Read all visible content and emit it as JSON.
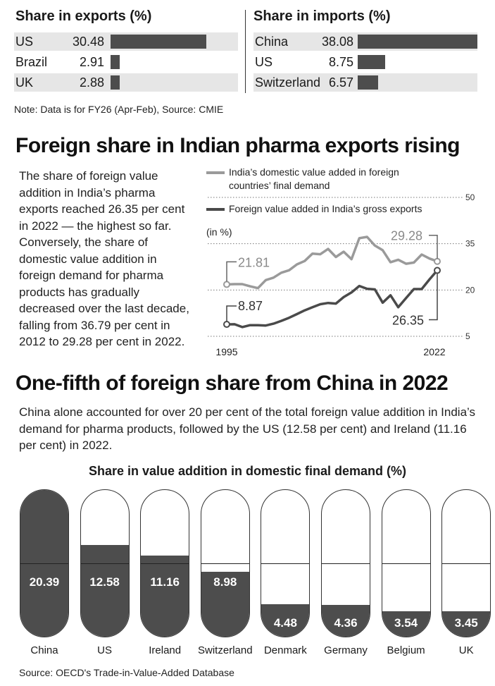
{
  "exports": {
    "title": "Share in exports (%)",
    "rows": [
      {
        "label": "US",
        "value": "30.48",
        "num": 30.48
      },
      {
        "label": "Brazil",
        "value": "2.91",
        "num": 2.91
      },
      {
        "label": "UK",
        "value": "2.88",
        "num": 2.88
      }
    ]
  },
  "imports": {
    "title": "Share in imports (%)",
    "rows": [
      {
        "label": "China",
        "value": "38.08",
        "num": 38.08
      },
      {
        "label": "US",
        "value": "8.75",
        "num": 8.75
      },
      {
        "label": "Switzerland",
        "value": "6.57",
        "num": 6.57
      }
    ]
  },
  "note": "Note: Data is for FY26 (Apr-Feb), Source: CMIE",
  "section2": {
    "title": "Foreign share in Indian pharma exports rising",
    "paragraph": "The share of foreign value addition in India’s pharma exports reached 26.35 per cent in 2022 — the highest so far. Conversely, the share of domestic value addition in foreign demand for pharma products has gradually decreased over the last decade, falling from 36.79 per cent in 2012 to 29.28 per cent in 2022."
  },
  "section3": {
    "title": "One-fifth of foreign share from China in 2022",
    "paragraph": "China alone accounted for over 20 per cent of the total foreign value addition in India’s demand for pharma products, followed by the US (12.58 per cent) and Ireland (11.16 per cent) in 2022."
  },
  "source": "Source: OECD's Trade-in-Value-Added Database",
  "chart_data": [
    {
      "type": "line",
      "unit_label": "(in %)",
      "x": [
        1995,
        1996,
        1997,
        1998,
        1999,
        2000,
        2001,
        2002,
        2003,
        2004,
        2005,
        2006,
        2007,
        2008,
        2009,
        2010,
        2011,
        2012,
        2013,
        2014,
        2015,
        2016,
        2017,
        2018,
        2019,
        2020,
        2021,
        2022
      ],
      "x_tick_labels": [
        "1995",
        "2022"
      ],
      "y_ticks": [
        5,
        20,
        35,
        50
      ],
      "ylim": [
        5,
        50
      ],
      "series": [
        {
          "name": "India’s domestic value added in foreign countries’ final demand",
          "color": "#9a9a9a",
          "values": [
            21.81,
            21.9,
            21.9,
            21.2,
            20.6,
            23.2,
            24.0,
            25.6,
            26.4,
            28.3,
            29.4,
            31.8,
            31.6,
            33.3,
            30.7,
            32.4,
            30.0,
            36.79,
            37.2,
            34.4,
            32.9,
            29.0,
            29.8,
            28.5,
            28.9,
            31.5,
            30.2,
            29.28
          ],
          "start_label": "21.81",
          "end_label": "29.28"
        },
        {
          "name": "Foreign value added in India’s gross exports",
          "color": "#4a4a4a",
          "values": [
            8.87,
            8.9,
            8.0,
            8.6,
            8.6,
            8.5,
            9.1,
            10.0,
            11.0,
            12.2,
            13.4,
            14.4,
            15.4,
            15.8,
            15.6,
            17.7,
            19.2,
            21.3,
            20.4,
            20.2,
            15.9,
            18.3,
            14.4,
            17.4,
            20.3,
            20.3,
            23.4,
            26.35
          ],
          "start_label": "8.87",
          "end_label": "26.35"
        }
      ]
    },
    {
      "type": "bar",
      "title": "Share in value addition in domestic final demand (%)",
      "categories": [
        "China",
        "US",
        "Ireland",
        "Switzerland",
        "Denmark",
        "Germany",
        "Belgium",
        "UK"
      ],
      "values": [
        20.39,
        12.58,
        11.16,
        8.98,
        4.48,
        4.36,
        3.54,
        3.45
      ],
      "value_labels": [
        "20.39",
        "12.58",
        "11.16",
        "8.98",
        "4.48",
        "4.36",
        "3.54",
        "3.45"
      ],
      "ylim": [
        0,
        20.39
      ],
      "color": "#4d4d4d"
    }
  ]
}
